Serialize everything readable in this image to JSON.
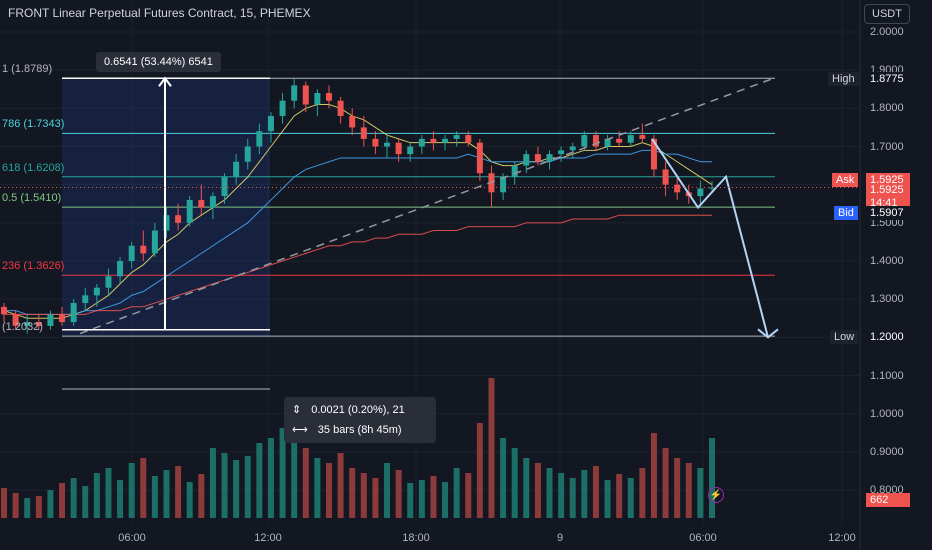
{
  "title": "FRONT Linear Perpetual Futures Contract, 15, PHEMEX",
  "currency_button": "USDT",
  "price_axis": [
    "2.0000",
    "1.9000",
    "1.8000",
    "1.7000",
    "1.6000",
    "1.5000",
    "1.4000",
    "1.3000",
    "1.2000",
    "1.1000",
    "1.0000",
    "0.9000",
    "0.8000"
  ],
  "time_axis": [
    "06:00",
    "12:00",
    "18:00",
    "9",
    "06:00",
    "12:00"
  ],
  "fib_levels": [
    {
      "label": "1 (1.8789)",
      "price": 1.8789,
      "color": "#b2b5be"
    },
    {
      "label": "786 (1.7343)",
      "price": 1.7343,
      "color": "#4dd0e1"
    },
    {
      "label": "618 (1.6208)",
      "price": 1.6208,
      "color": "#26a69a"
    },
    {
      "label": "0.5 (1.5410)",
      "price": 1.541,
      "color": "#81c784"
    },
    {
      "label": "236 (1.3626)",
      "price": 1.3626,
      "color": "#f23645"
    },
    {
      "label": "(1.2032)",
      "price": 1.2032,
      "color": "#b2b5be"
    }
  ],
  "measure_tooltip": "0.6541 (53.44%) 6541",
  "tags": {
    "high": {
      "label": "High",
      "value": "1.8775",
      "price": 1.8775
    },
    "ask": {
      "label": "Ask",
      "value": "1.5925",
      "price": 1.5925
    },
    "last": {
      "value": "1.5925",
      "countdown": "14:41"
    },
    "bid": {
      "label": "Bid",
      "value": "1.5907",
      "price": 1.5907
    },
    "low": {
      "label": "Low",
      "value": "1.2000",
      "price": 1.2
    },
    "volume": {
      "value": "662"
    }
  },
  "info_box": {
    "price_range": "0.0021 (0.20%), 21",
    "bar_range": "35 bars (8h 45m)"
  },
  "icons": {
    "price-range": "vertical-arrows-icon",
    "bar-range": "horizontal-arrows-icon",
    "lightning": "lightning-icon"
  },
  "colors": {
    "up": "#26a69a",
    "down": "#ef5350",
    "background": "#131722",
    "grid": "#1e222d"
  },
  "chart_data": {
    "type": "candlestick",
    "interval": "15",
    "ylim": [
      0.75,
      2.05
    ],
    "projection_path": [
      1.5925,
      1.6208,
      1.2
    ],
    "candles": [
      {
        "o": 1.28,
        "h": 1.29,
        "l": 1.24,
        "c": 1.26
      },
      {
        "o": 1.26,
        "h": 1.27,
        "l": 1.22,
        "c": 1.23
      },
      {
        "o": 1.23,
        "h": 1.26,
        "l": 1.21,
        "c": 1.24
      },
      {
        "o": 1.24,
        "h": 1.26,
        "l": 1.22,
        "c": 1.23
      },
      {
        "o": 1.23,
        "h": 1.27,
        "l": 1.22,
        "c": 1.26
      },
      {
        "o": 1.26,
        "h": 1.28,
        "l": 1.23,
        "c": 1.24
      },
      {
        "o": 1.24,
        "h": 1.3,
        "l": 1.23,
        "c": 1.29
      },
      {
        "o": 1.29,
        "h": 1.33,
        "l": 1.27,
        "c": 1.31
      },
      {
        "o": 1.31,
        "h": 1.34,
        "l": 1.28,
        "c": 1.33
      },
      {
        "o": 1.33,
        "h": 1.38,
        "l": 1.31,
        "c": 1.36
      },
      {
        "o": 1.36,
        "h": 1.41,
        "l": 1.34,
        "c": 1.4
      },
      {
        "o": 1.4,
        "h": 1.45,
        "l": 1.38,
        "c": 1.44
      },
      {
        "o": 1.44,
        "h": 1.48,
        "l": 1.4,
        "c": 1.42
      },
      {
        "o": 1.42,
        "h": 1.5,
        "l": 1.41,
        "c": 1.48
      },
      {
        "o": 1.48,
        "h": 1.54,
        "l": 1.46,
        "c": 1.52
      },
      {
        "o": 1.52,
        "h": 1.55,
        "l": 1.48,
        "c": 1.5
      },
      {
        "o": 1.5,
        "h": 1.57,
        "l": 1.49,
        "c": 1.56
      },
      {
        "o": 1.56,
        "h": 1.6,
        "l": 1.52,
        "c": 1.54
      },
      {
        "o": 1.54,
        "h": 1.58,
        "l": 1.51,
        "c": 1.57
      },
      {
        "o": 1.57,
        "h": 1.63,
        "l": 1.55,
        "c": 1.62
      },
      {
        "o": 1.62,
        "h": 1.68,
        "l": 1.6,
        "c": 1.66
      },
      {
        "o": 1.66,
        "h": 1.72,
        "l": 1.64,
        "c": 1.7
      },
      {
        "o": 1.7,
        "h": 1.76,
        "l": 1.68,
        "c": 1.74
      },
      {
        "o": 1.74,
        "h": 1.79,
        "l": 1.71,
        "c": 1.78
      },
      {
        "o": 1.78,
        "h": 1.84,
        "l": 1.76,
        "c": 1.82
      },
      {
        "o": 1.82,
        "h": 1.88,
        "l": 1.8,
        "c": 1.86
      },
      {
        "o": 1.86,
        "h": 1.87,
        "l": 1.79,
        "c": 1.81
      },
      {
        "o": 1.81,
        "h": 1.85,
        "l": 1.78,
        "c": 1.84
      },
      {
        "o": 1.84,
        "h": 1.86,
        "l": 1.8,
        "c": 1.82
      },
      {
        "o": 1.82,
        "h": 1.83,
        "l": 1.76,
        "c": 1.78
      },
      {
        "o": 1.78,
        "h": 1.8,
        "l": 1.73,
        "c": 1.75
      },
      {
        "o": 1.75,
        "h": 1.78,
        "l": 1.7,
        "c": 1.72
      },
      {
        "o": 1.72,
        "h": 1.74,
        "l": 1.68,
        "c": 1.7
      },
      {
        "o": 1.7,
        "h": 1.73,
        "l": 1.67,
        "c": 1.71
      },
      {
        "o": 1.71,
        "h": 1.72,
        "l": 1.66,
        "c": 1.68
      },
      {
        "o": 1.68,
        "h": 1.71,
        "l": 1.66,
        "c": 1.7
      },
      {
        "o": 1.7,
        "h": 1.73,
        "l": 1.68,
        "c": 1.72
      },
      {
        "o": 1.72,
        "h": 1.74,
        "l": 1.69,
        "c": 1.71
      },
      {
        "o": 1.71,
        "h": 1.73,
        "l": 1.69,
        "c": 1.72
      },
      {
        "o": 1.72,
        "h": 1.74,
        "l": 1.7,
        "c": 1.73
      },
      {
        "o": 1.73,
        "h": 1.74,
        "l": 1.7,
        "c": 1.71
      },
      {
        "o": 1.71,
        "h": 1.72,
        "l": 1.61,
        "c": 1.63
      },
      {
        "o": 1.63,
        "h": 1.65,
        "l": 1.54,
        "c": 1.58
      },
      {
        "o": 1.58,
        "h": 1.63,
        "l": 1.56,
        "c": 1.62
      },
      {
        "o": 1.62,
        "h": 1.66,
        "l": 1.6,
        "c": 1.65
      },
      {
        "o": 1.65,
        "h": 1.69,
        "l": 1.63,
        "c": 1.68
      },
      {
        "o": 1.68,
        "h": 1.7,
        "l": 1.65,
        "c": 1.66
      },
      {
        "o": 1.66,
        "h": 1.69,
        "l": 1.64,
        "c": 1.68
      },
      {
        "o": 1.68,
        "h": 1.7,
        "l": 1.66,
        "c": 1.69
      },
      {
        "o": 1.69,
        "h": 1.71,
        "l": 1.67,
        "c": 1.7
      },
      {
        "o": 1.7,
        "h": 1.74,
        "l": 1.69,
        "c": 1.73
      },
      {
        "o": 1.73,
        "h": 1.74,
        "l": 1.69,
        "c": 1.7
      },
      {
        "o": 1.7,
        "h": 1.73,
        "l": 1.69,
        "c": 1.72
      },
      {
        "o": 1.72,
        "h": 1.74,
        "l": 1.7,
        "c": 1.71
      },
      {
        "o": 1.71,
        "h": 1.74,
        "l": 1.7,
        "c": 1.73
      },
      {
        "o": 1.73,
        "h": 1.76,
        "l": 1.71,
        "c": 1.72
      },
      {
        "o": 1.72,
        "h": 1.73,
        "l": 1.62,
        "c": 1.64
      },
      {
        "o": 1.64,
        "h": 1.66,
        "l": 1.57,
        "c": 1.6
      },
      {
        "o": 1.6,
        "h": 1.62,
        "l": 1.56,
        "c": 1.58
      },
      {
        "o": 1.58,
        "h": 1.6,
        "l": 1.55,
        "c": 1.57
      },
      {
        "o": 1.57,
        "h": 1.61,
        "l": 1.55,
        "c": 1.59
      },
      {
        "o": 1.59,
        "h": 1.61,
        "l": 1.58,
        "c": 1.5925
      }
    ],
    "ema_fast": [
      1.27,
      1.26,
      1.25,
      1.25,
      1.25,
      1.25,
      1.26,
      1.27,
      1.29,
      1.31,
      1.34,
      1.37,
      1.39,
      1.42,
      1.45,
      1.47,
      1.5,
      1.52,
      1.54,
      1.56,
      1.59,
      1.62,
      1.66,
      1.7,
      1.74,
      1.78,
      1.8,
      1.81,
      1.81,
      1.8,
      1.78,
      1.77,
      1.75,
      1.73,
      1.72,
      1.71,
      1.71,
      1.71,
      1.71,
      1.71,
      1.71,
      1.69,
      1.66,
      1.65,
      1.65,
      1.66,
      1.66,
      1.67,
      1.67,
      1.68,
      1.69,
      1.69,
      1.7,
      1.7,
      1.7,
      1.71,
      1.7,
      1.68,
      1.66,
      1.64,
      1.62,
      1.6
    ],
    "ema_mid": [
      1.27,
      1.27,
      1.26,
      1.26,
      1.26,
      1.26,
      1.26,
      1.27,
      1.27,
      1.28,
      1.29,
      1.31,
      1.32,
      1.34,
      1.36,
      1.38,
      1.4,
      1.42,
      1.44,
      1.46,
      1.48,
      1.5,
      1.53,
      1.56,
      1.59,
      1.62,
      1.64,
      1.65,
      1.66,
      1.67,
      1.67,
      1.67,
      1.67,
      1.67,
      1.67,
      1.67,
      1.67,
      1.67,
      1.67,
      1.67,
      1.68,
      1.67,
      1.66,
      1.66,
      1.66,
      1.66,
      1.66,
      1.66,
      1.67,
      1.67,
      1.67,
      1.68,
      1.68,
      1.68,
      1.68,
      1.69,
      1.69,
      1.68,
      1.68,
      1.67,
      1.66,
      1.66
    ],
    "ema_slow": [
      1.26,
      1.26,
      1.26,
      1.26,
      1.26,
      1.26,
      1.26,
      1.26,
      1.27,
      1.27,
      1.27,
      1.28,
      1.28,
      1.29,
      1.3,
      1.31,
      1.32,
      1.33,
      1.34,
      1.35,
      1.36,
      1.37,
      1.38,
      1.39,
      1.4,
      1.41,
      1.42,
      1.43,
      1.44,
      1.44,
      1.45,
      1.45,
      1.46,
      1.46,
      1.47,
      1.47,
      1.47,
      1.48,
      1.48,
      1.48,
      1.49,
      1.49,
      1.49,
      1.49,
      1.49,
      1.5,
      1.5,
      1.5,
      1.5,
      1.51,
      1.51,
      1.51,
      1.51,
      1.52,
      1.52,
      1.52,
      1.52,
      1.52,
      1.52,
      1.52,
      1.52,
      1.52
    ],
    "volume": [
      30,
      25,
      20,
      22,
      28,
      35,
      40,
      32,
      45,
      50,
      38,
      55,
      60,
      42,
      48,
      52,
      36,
      44,
      70,
      65,
      58,
      62,
      75,
      80,
      90,
      85,
      70,
      60,
      55,
      65,
      50,
      45,
      40,
      55,
      48,
      35,
      38,
      42,
      36,
      50,
      45,
      95,
      140,
      80,
      70,
      60,
      55,
      50,
      45,
      40,
      48,
      52,
      38,
      44,
      40,
      50,
      85,
      70,
      60,
      55,
      50,
      80
    ]
  }
}
